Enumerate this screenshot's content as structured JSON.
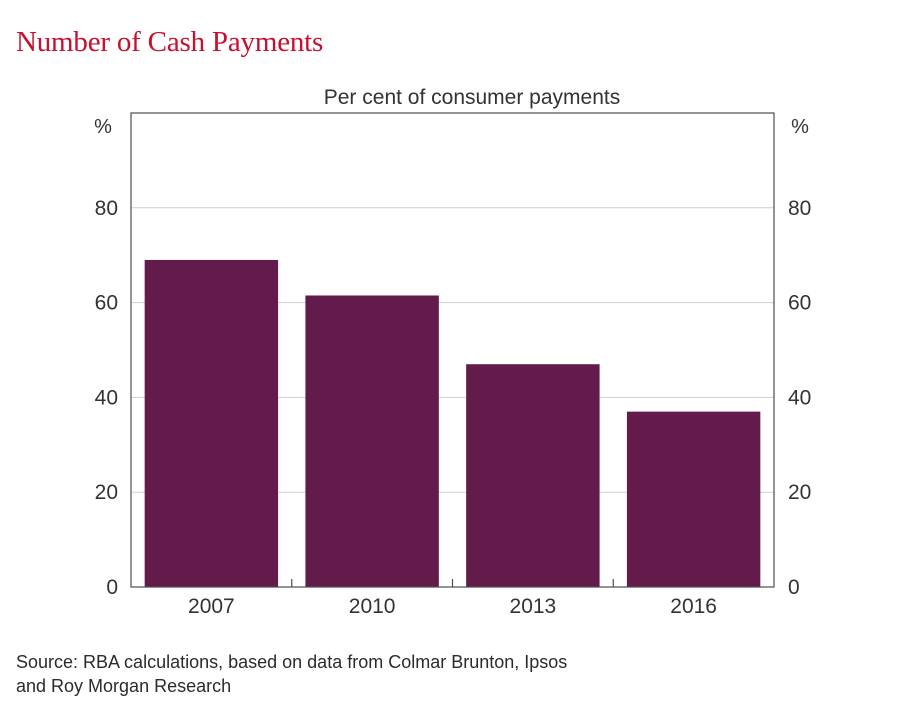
{
  "title": "Number of Cash Payments",
  "source_line1": "Source: RBA calculations, based on data from Colmar Brunton, Ipsos",
  "source_line2": "and Roy Morgan Research",
  "chart_data": {
    "type": "bar",
    "subtitle": "Per cent of consumer payments",
    "categories": [
      "2007",
      "2010",
      "2013",
      "2016"
    ],
    "values": [
      69,
      61.5,
      47,
      37
    ],
    "ylim": [
      0,
      100
    ],
    "yticks": [
      0,
      20,
      40,
      60,
      80
    ],
    "y_unit_left": "%",
    "y_unit_right": "%",
    "grid": true,
    "bar_color": "#621b4a",
    "grid_color": "#cfcfcf"
  }
}
